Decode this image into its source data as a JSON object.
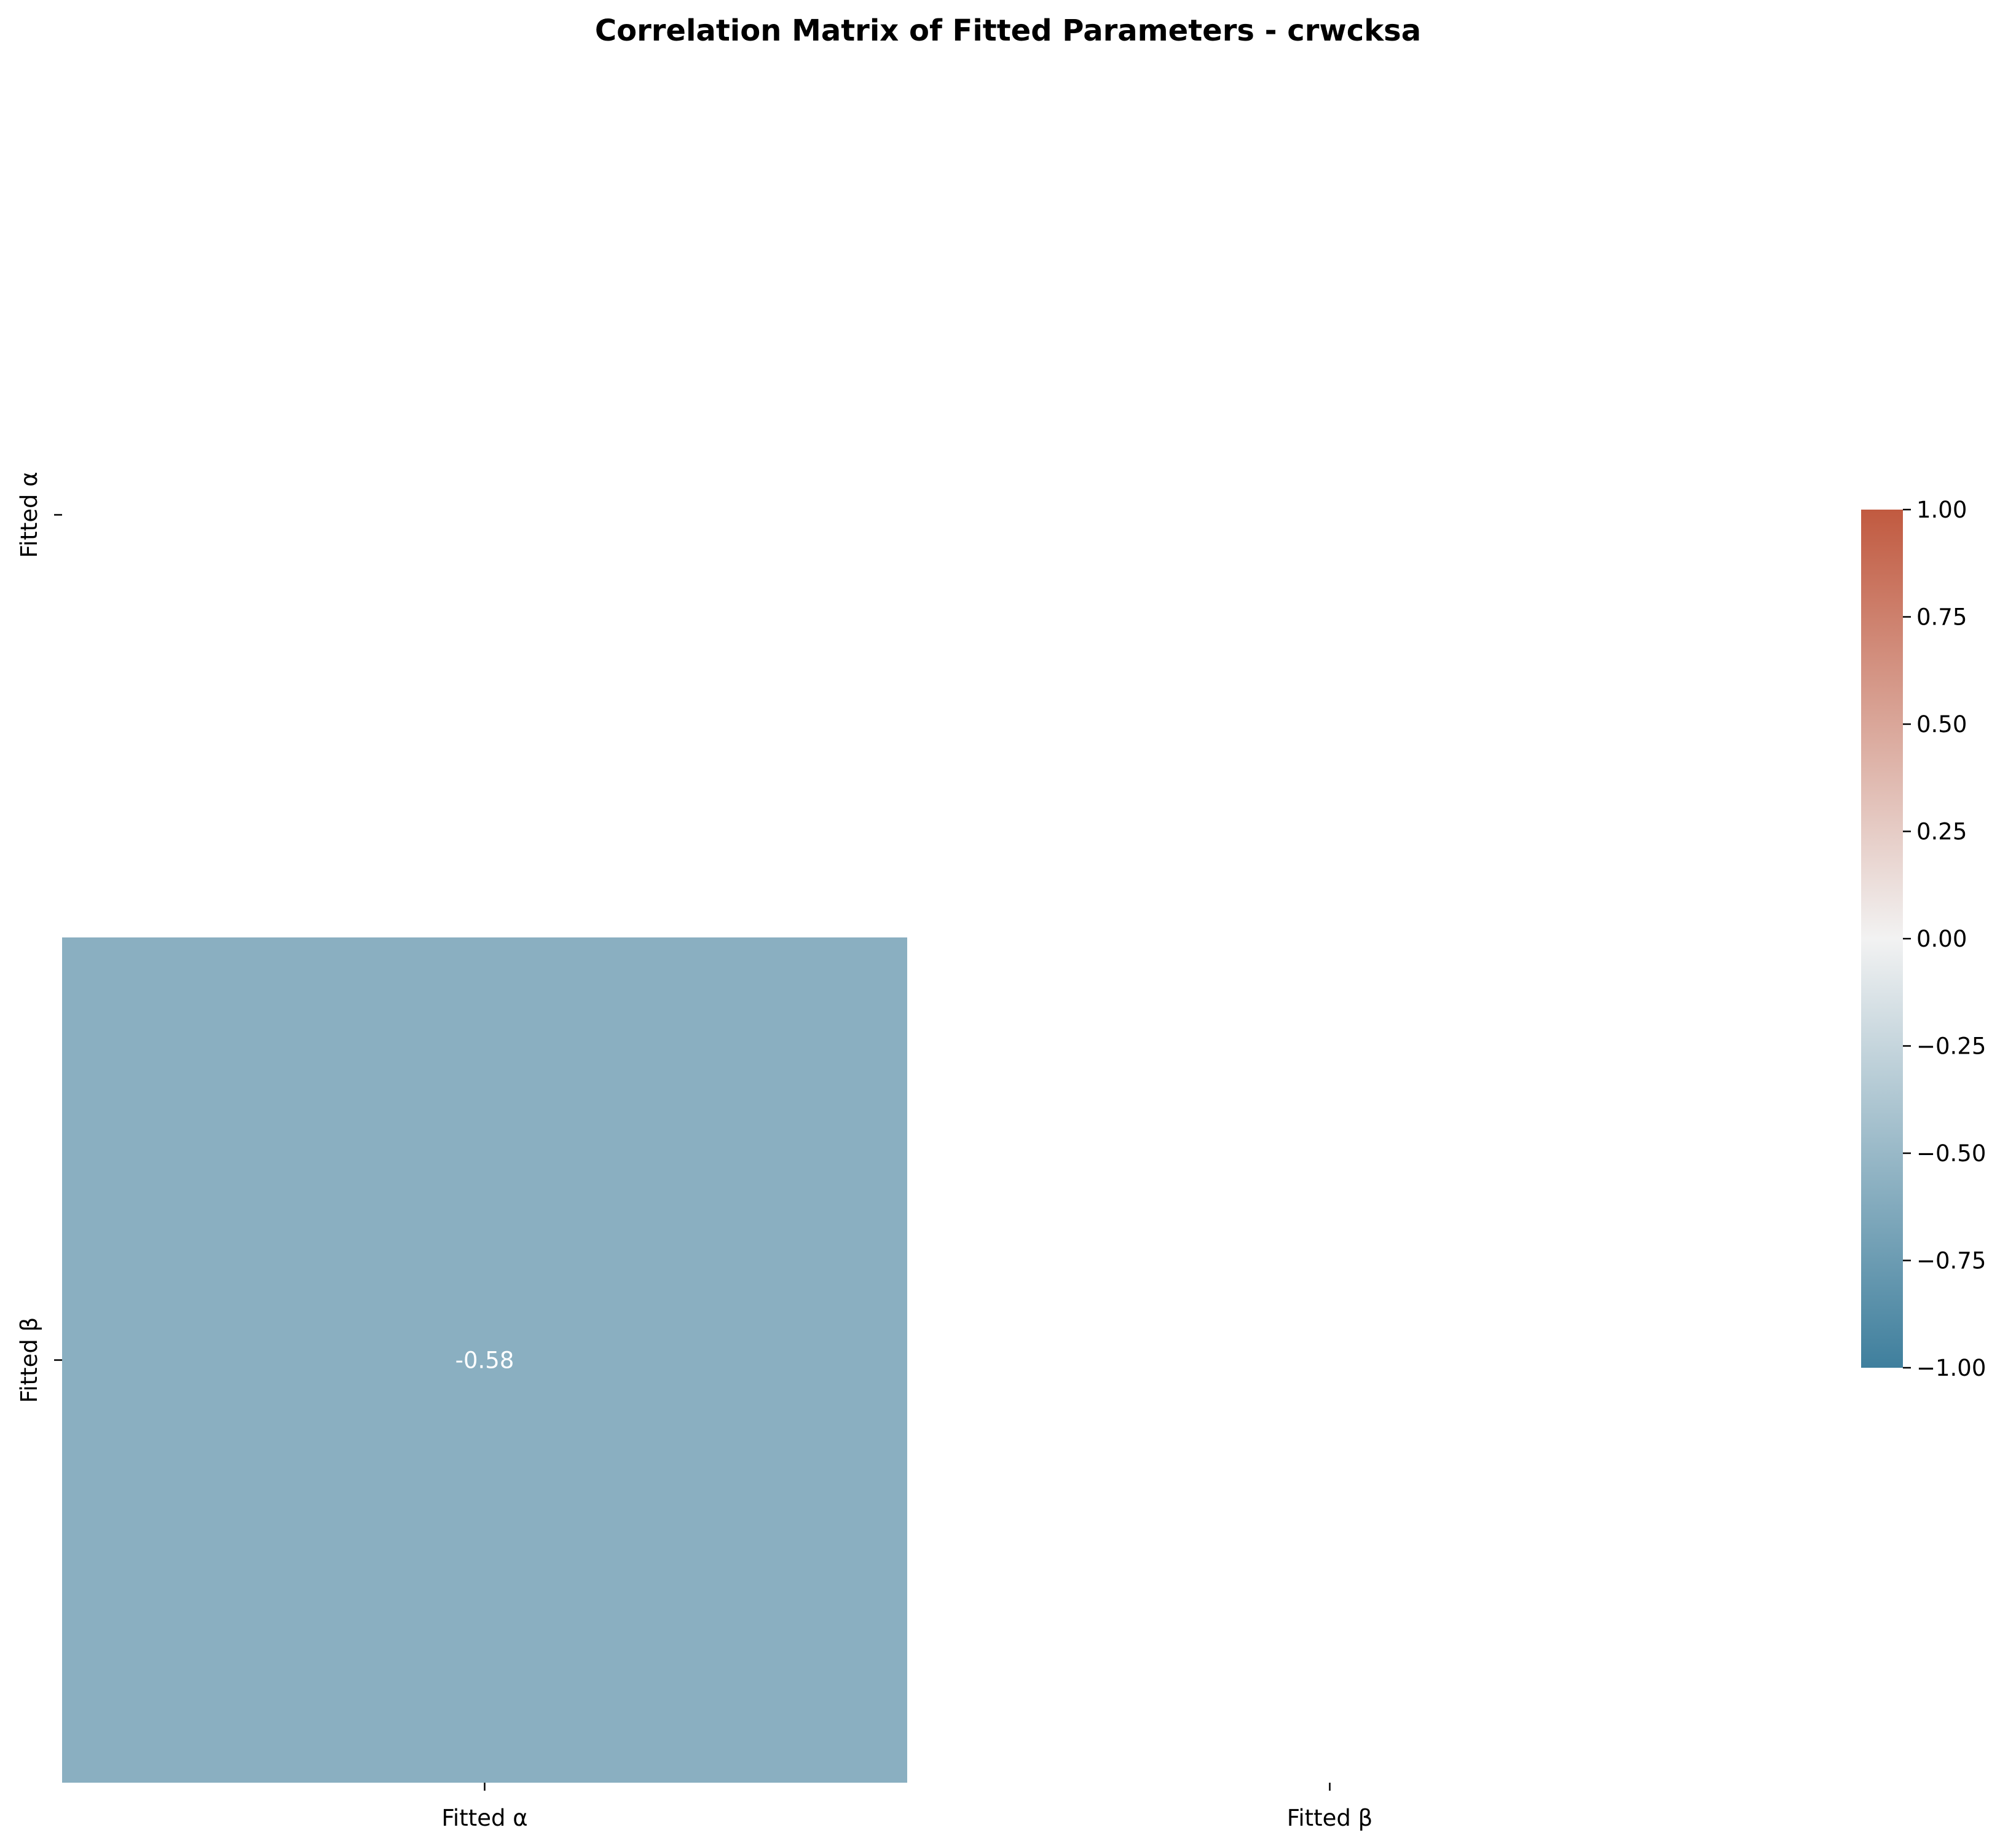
{
  "chart_data": {
    "type": "heatmap",
    "title": "Correlation Matrix of Fitted Parameters - crwcksa",
    "row_labels": [
      "Fitted α",
      "Fitted β"
    ],
    "col_labels": [
      "Fitted α",
      "Fitted β"
    ],
    "cells": [
      {
        "row": 1,
        "col": 0,
        "value": -0.58,
        "label": "-0.58"
      }
    ],
    "masked": "upper triangle including diagonal",
    "colorbar": {
      "min": -1.0,
      "max": 1.0,
      "ticks": [
        1.0,
        0.75,
        0.5,
        0.25,
        0.0,
        -0.25,
        -0.5,
        -0.75,
        -1.0
      ],
      "tick_labels": [
        "1.00",
        "0.75",
        "0.50",
        "0.25",
        "0.00",
        "−0.25",
        "−0.50",
        "−0.75",
        "−1.00"
      ],
      "colors": {
        "low": "#3f7f9d",
        "mid": "#f2f2f2",
        "high": "#c15a40"
      }
    },
    "annotation_color": "#ffffff",
    "grid": false
  }
}
